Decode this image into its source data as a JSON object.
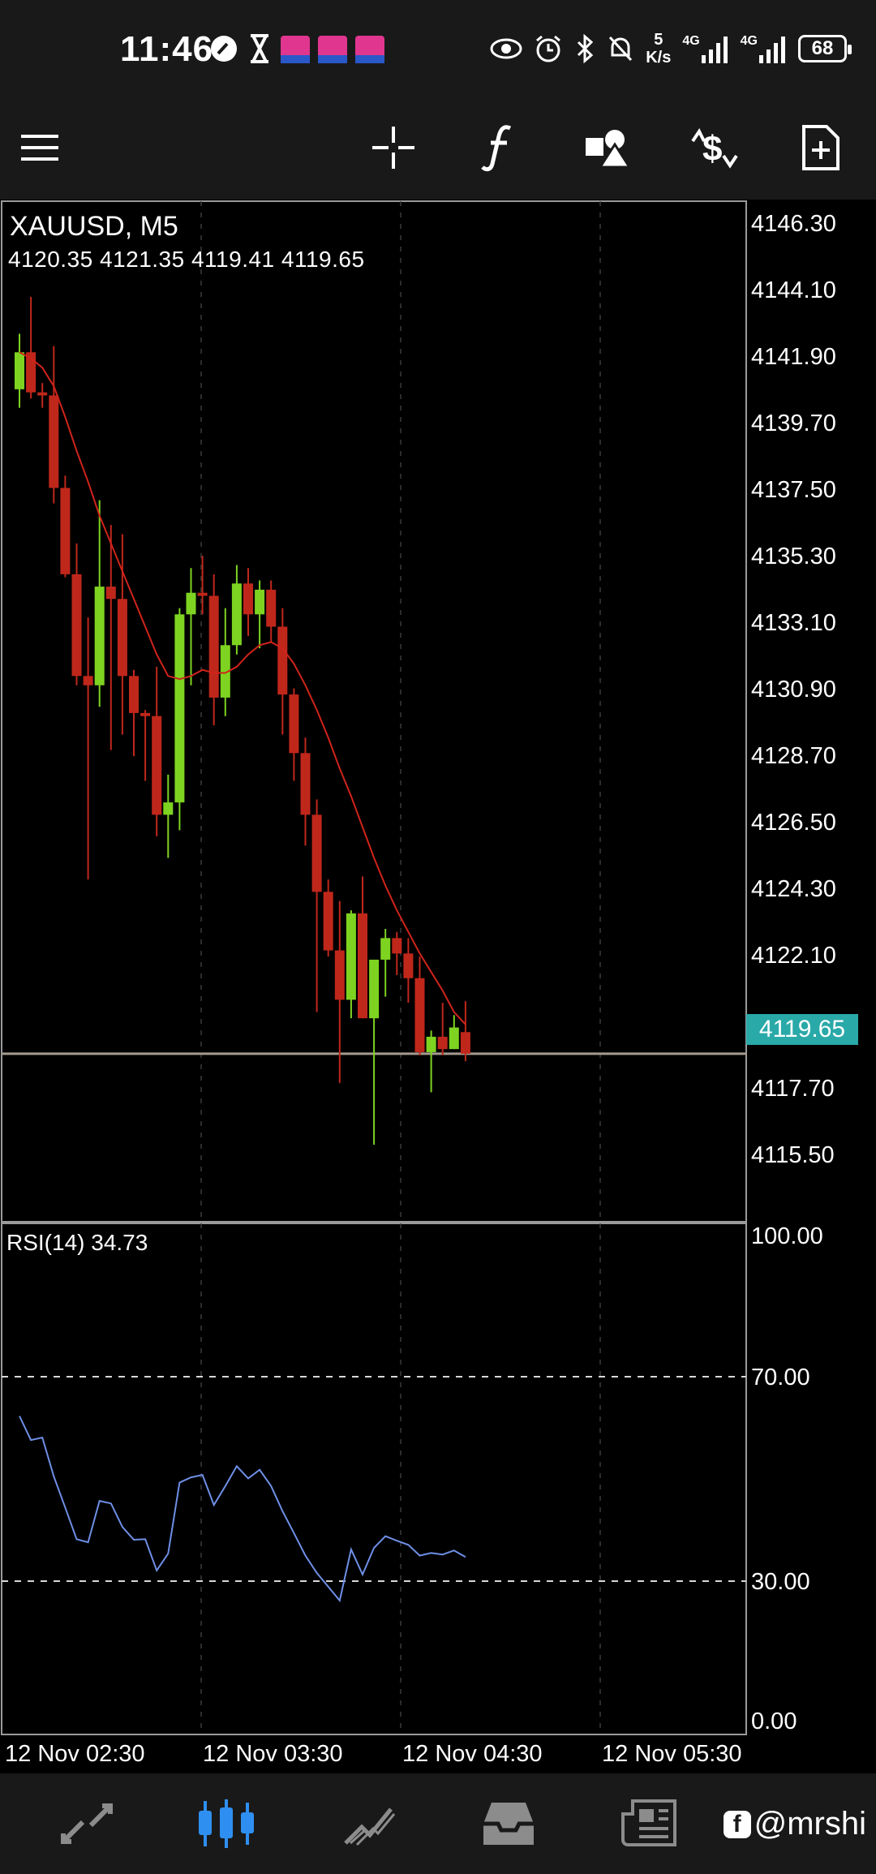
{
  "status_bar": {
    "time": "11:46",
    "net_speed_value": "5",
    "net_speed_unit": "K/s",
    "signal_1": "4G",
    "signal_2": "4G",
    "battery": "68"
  },
  "toolbar": {
    "icons": [
      "menu-icon",
      "crosshair-icon",
      "function-icon",
      "objects-icon",
      "trade-icon",
      "new-order-icon"
    ]
  },
  "chart": {
    "symbol": "XAUUSD, M5",
    "ohlc": "4120.35 4121.35 4119.41 4119.65",
    "current_price": "4119.65",
    "price_axis": [
      "4146.30",
      "4144.10",
      "4141.90",
      "4139.70",
      "4137.50",
      "4135.30",
      "4133.10",
      "4130.90",
      "4128.70",
      "4126.50",
      "4124.30",
      "4122.10",
      "4117.70",
      "4115.50"
    ],
    "rsi_label": "RSI(14) 34.73",
    "rsi_axis": [
      "100.00",
      "70.00",
      "30.00",
      "0.00"
    ],
    "time_axis": [
      "12 Nov 02:30",
      "12 Nov 03:30",
      "12 Nov 04:30",
      "12 Nov 05:30"
    ],
    "colors": {
      "bull": "#7ed321",
      "bear": "#c0271b",
      "ma": "#d0241b",
      "rsi": "#6f8fe6",
      "price_tag": "#2aa9a9"
    }
  },
  "chart_data": {
    "type": "candlestick",
    "title": "XAUUSD, M5",
    "ylim": [
      4114.2,
      4147.3
    ],
    "candles": [
      {
        "o": 4141.2,
        "h": 4143.0,
        "l": 4140.6,
        "c": 4142.4
      },
      {
        "o": 4142.4,
        "h": 4144.2,
        "l": 4140.9,
        "c": 4141.1
      },
      {
        "o": 4141.1,
        "h": 4141.4,
        "l": 4140.6,
        "c": 4141.0
      },
      {
        "o": 4141.0,
        "h": 4142.6,
        "l": 4137.5,
        "c": 4138.0
      },
      {
        "o": 4138.0,
        "h": 4138.4,
        "l": 4135.1,
        "c": 4135.2
      },
      {
        "o": 4135.2,
        "h": 4136.2,
        "l": 4131.6,
        "c": 4131.9
      },
      {
        "o": 4131.9,
        "h": 4133.8,
        "l": 4125.3,
        "c": 4131.6
      },
      {
        "o": 4131.6,
        "h": 4137.6,
        "l": 4130.9,
        "c": 4134.8
      },
      {
        "o": 4134.8,
        "h": 4136.8,
        "l": 4129.5,
        "c": 4134.4
      },
      {
        "o": 4134.4,
        "h": 4136.5,
        "l": 4130.0,
        "c": 4131.9
      },
      {
        "o": 4131.9,
        "h": 4132.1,
        "l": 4129.3,
        "c": 4130.7
      },
      {
        "o": 4130.7,
        "h": 4130.8,
        "l": 4128.5,
        "c": 4130.6
      },
      {
        "o": 4130.6,
        "h": 4132.2,
        "l": 4126.7,
        "c": 4127.4
      },
      {
        "o": 4127.4,
        "h": 4128.7,
        "l": 4126.0,
        "c": 4127.8
      },
      {
        "o": 4127.8,
        "h": 4134.1,
        "l": 4126.9,
        "c": 4133.9
      },
      {
        "o": 4133.9,
        "h": 4135.4,
        "l": 4131.6,
        "c": 4134.6
      },
      {
        "o": 4134.6,
        "h": 4135.8,
        "l": 4133.9,
        "c": 4134.5
      },
      {
        "o": 4134.5,
        "h": 4135.2,
        "l": 4130.3,
        "c": 4131.2
      },
      {
        "o": 4131.2,
        "h": 4134.1,
        "l": 4130.6,
        "c": 4132.9
      },
      {
        "o": 4132.9,
        "h": 4135.5,
        "l": 4132.6,
        "c": 4134.9
      },
      {
        "o": 4134.9,
        "h": 4135.4,
        "l": 4133.2,
        "c": 4133.9
      },
      {
        "o": 4133.9,
        "h": 4135.0,
        "l": 4132.8,
        "c": 4134.7
      },
      {
        "o": 4134.7,
        "h": 4135.0,
        "l": 4133.0,
        "c": 4133.5
      },
      {
        "o": 4133.5,
        "h": 4134.1,
        "l": 4130.0,
        "c": 4131.3
      },
      {
        "o": 4131.3,
        "h": 4131.5,
        "l": 4128.5,
        "c": 4129.4
      },
      {
        "o": 4129.4,
        "h": 4129.9,
        "l": 4126.4,
        "c": 4127.4
      },
      {
        "o": 4127.4,
        "h": 4127.9,
        "l": 4121.0,
        "c": 4124.9
      },
      {
        "o": 4124.9,
        "h": 4125.3,
        "l": 4122.8,
        "c": 4123.0
      },
      {
        "o": 4123.0,
        "h": 4124.6,
        "l": 4118.7,
        "c": 4121.4
      },
      {
        "o": 4121.4,
        "h": 4124.3,
        "l": 4120.8,
        "c": 4124.2
      },
      {
        "o": 4124.2,
        "h": 4125.4,
        "l": 4120.8,
        "c": 4120.8
      },
      {
        "o": 4120.8,
        "h": 4122.7,
        "l": 4116.7,
        "c": 4122.7
      },
      {
        "o": 4122.7,
        "h": 4123.7,
        "l": 4121.5,
        "c": 4123.4
      },
      {
        "o": 4123.4,
        "h": 4123.6,
        "l": 4122.2,
        "c": 4122.9
      },
      {
        "o": 4122.9,
        "h": 4123.4,
        "l": 4121.3,
        "c": 4122.1
      },
      {
        "o": 4122.1,
        "h": 4122.8,
        "l": 4119.6,
        "c": 4119.7
      },
      {
        "o": 4119.7,
        "h": 4120.4,
        "l": 4118.4,
        "c": 4120.2
      },
      {
        "o": 4120.2,
        "h": 4121.3,
        "l": 4119.6,
        "c": 4119.8
      },
      {
        "o": 4119.8,
        "h": 4120.9,
        "l": 4119.8,
        "c": 4120.5
      },
      {
        "o": 4120.35,
        "h": 4121.35,
        "l": 4119.41,
        "c": 4119.65
      }
    ],
    "ma": [
      4142.4,
      4142.2,
      4141.9,
      4141.3,
      4140.3,
      4139.2,
      4138.2,
      4137.1,
      4136.2,
      4135.3,
      4134.4,
      4133.5,
      4132.6,
      4131.9,
      4131.8,
      4131.9,
      4132.1,
      4132.0,
      4132.0,
      4132.2,
      4132.6,
      4132.9,
      4133.0,
      4132.8,
      4132.3,
      4131.6,
      4130.8,
      4129.9,
      4128.9,
      4128.0,
      4127.0,
      4126.0,
      4125.1,
      4124.3,
      4123.6,
      4122.9,
      4122.3,
      4121.7,
      4121.0,
      4120.6
    ],
    "rsi": [
      62.3,
      57.6,
      58.1,
      50.5,
      44.4,
      38.2,
      37.6,
      45.7,
      45.2,
      40.6,
      38.1,
      38.2,
      32.1,
      35.4,
      49.3,
      50.3,
      50.8,
      44.9,
      48.6,
      52.5,
      50.1,
      51.8,
      48.6,
      43.7,
      39.4,
      35.0,
      31.6,
      28.9,
      26.2,
      36.2,
      31.3,
      36.5,
      38.8,
      37.9,
      37.1,
      35.0,
      35.5,
      35.2,
      36.0,
      34.73
    ],
    "rsi_levels": [
      70,
      30
    ],
    "rsi_range": [
      0,
      100
    ],
    "x_labels": [
      "12 Nov 02:30",
      "12 Nov 03:30",
      "12 Nov 04:30",
      "12 Nov 05:30"
    ]
  },
  "bottom_nav": {
    "items": [
      "quotes-icon",
      "chart-icon",
      "trade-icon",
      "history-icon",
      "news-icon"
    ],
    "watermark": "@mrshi"
  }
}
